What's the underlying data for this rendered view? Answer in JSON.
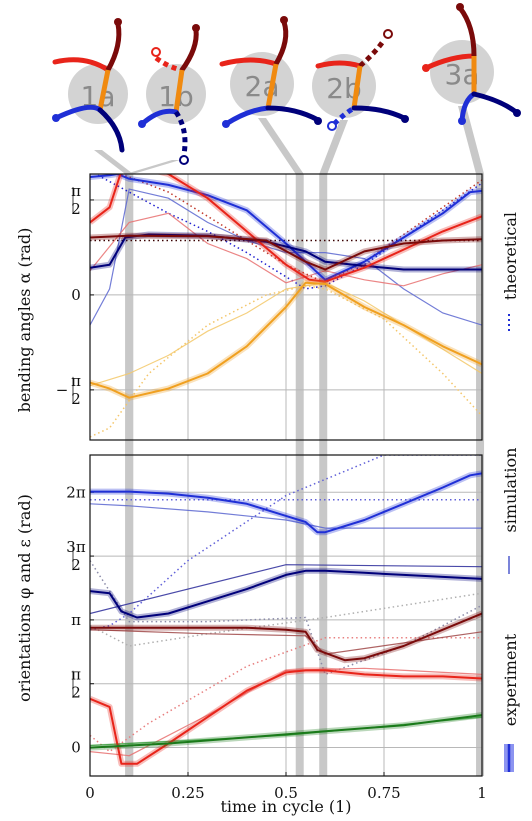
{
  "phases": [
    {
      "label": "1a",
      "t": 0.1
    },
    {
      "label": "1b",
      "t": 0.1
    },
    {
      "label": "2a",
      "t": 0.535
    },
    {
      "label": "2b",
      "t": 0.595
    },
    {
      "label": "3a",
      "t": 0.995
    }
  ],
  "chart_data": [
    {
      "type": "line",
      "ylabel": "bending angles α (rad)",
      "xlim": [
        0,
        1
      ],
      "ylim": [
        -2.4,
        2.0
      ],
      "yticks": [
        {
          "value": 1.5708,
          "label_num": "π",
          "label_den": "2",
          "sign": ""
        },
        {
          "value": 0,
          "label_num": "0",
          "label_den": "",
          "sign": ""
        },
        {
          "value": -1.5708,
          "label_num": "π",
          "label_den": "2",
          "sign": "−"
        }
      ],
      "grid": true,
      "series": [
        {
          "role": "experiment",
          "color": "#1f2fd6",
          "x": [
            0,
            0.05,
            0.07,
            0.1,
            0.2,
            0.3,
            0.4,
            0.5,
            0.55,
            0.6,
            0.7,
            0.8,
            0.9,
            0.97,
            1
          ],
          "y": [
            1.95,
            1.98,
            2.0,
            1.92,
            1.82,
            1.65,
            1.4,
            0.85,
            0.55,
            0.25,
            0.55,
            0.95,
            1.35,
            1.7,
            1.72
          ]
        },
        {
          "role": "experiment",
          "color": "#00007a",
          "x": [
            0,
            0.05,
            0.09,
            0.15,
            0.3,
            0.45,
            0.55,
            0.6,
            0.7,
            0.8,
            0.9,
            1
          ],
          "y": [
            0.45,
            0.5,
            0.95,
            1.0,
            0.98,
            0.88,
            0.72,
            0.55,
            0.48,
            0.42,
            0.42,
            0.42
          ]
        },
        {
          "role": "experiment",
          "color": "#e8241a",
          "x": [
            0,
            0.05,
            0.08,
            0.1,
            0.15,
            0.2,
            0.3,
            0.4,
            0.5,
            0.56,
            0.6,
            0.7,
            0.8,
            0.9,
            1
          ],
          "y": [
            1.2,
            1.45,
            2.05,
            2.08,
            2.08,
            2.0,
            1.6,
            1.05,
            0.5,
            0.25,
            0.22,
            0.45,
            0.75,
            1.05,
            1.3
          ]
        },
        {
          "role": "experiment",
          "color": "#7a0a0a",
          "x": [
            0,
            0.1,
            0.3,
            0.45,
            0.55,
            0.6,
            0.7,
            0.8,
            0.9,
            1
          ],
          "y": [
            0.95,
            0.98,
            0.97,
            0.9,
            0.55,
            0.42,
            0.72,
            0.85,
            0.9,
            0.92
          ]
        },
        {
          "role": "experiment",
          "color": "#f0a020",
          "x": [
            0,
            0.05,
            0.1,
            0.2,
            0.3,
            0.4,
            0.5,
            0.55,
            0.6,
            0.7,
            0.8,
            0.9,
            1
          ],
          "y": [
            -1.45,
            -1.55,
            -1.7,
            -1.55,
            -1.3,
            -0.85,
            -0.2,
            0.2,
            0.18,
            -0.2,
            -0.5,
            -0.85,
            -1.15
          ]
        },
        {
          "role": "simulation",
          "color": "#5a66d0",
          "x": [
            0,
            0.05,
            0.1,
            0.2,
            0.3,
            0.4,
            0.5,
            0.6,
            0.7,
            0.8,
            0.9,
            1
          ],
          "y": [
            -0.5,
            0.1,
            1.75,
            1.6,
            1.2,
            0.9,
            0.7,
            0.7,
            0.6,
            0.1,
            -0.3,
            -0.5
          ]
        },
        {
          "role": "simulation",
          "color": "#e87070",
          "x": [
            0,
            0.1,
            0.2,
            0.3,
            0.4,
            0.5,
            0.6,
            0.7,
            0.8,
            0.9,
            1
          ],
          "y": [
            0.4,
            1.2,
            1.35,
            0.85,
            0.6,
            0.2,
            0.4,
            0.25,
            0.15,
            0.35,
            0.5
          ]
        },
        {
          "role": "simulation",
          "color": "#f3c868",
          "x": [
            0,
            0.1,
            0.2,
            0.3,
            0.4,
            0.5,
            0.6,
            0.7,
            0.8,
            0.9,
            1
          ],
          "y": [
            -1.5,
            -1.3,
            -1.0,
            -0.6,
            -0.3,
            0.1,
            0.2,
            -0.1,
            -0.5,
            -0.9,
            -1.3
          ]
        },
        {
          "role": "theoretical",
          "color": "#2020d0",
          "x": [
            0,
            0.1,
            0.2,
            0.3,
            0.4,
            0.5,
            0.55,
            0.6,
            0.7,
            0.8,
            0.9,
            1
          ],
          "y": [
            2.05,
            1.7,
            1.35,
            1.05,
            0.7,
            0.3,
            0.1,
            0.15,
            0.5,
            0.95,
            1.4,
            1.85
          ]
        },
        {
          "role": "theoretical",
          "color": "#c0392b",
          "x": [
            0,
            0.05,
            0.1,
            0.2,
            0.3,
            0.4,
            0.5,
            0.6,
            0.7,
            0.8,
            0.9,
            1
          ],
          "y": [
            2.05,
            2.05,
            1.95,
            1.7,
            1.3,
            0.9,
            0.5,
            0.2,
            0.55,
            1.0,
            1.45,
            1.9
          ]
        },
        {
          "role": "theoretical",
          "color": "#3a0000",
          "x": [
            0,
            1
          ],
          "y": [
            0.9,
            0.9
          ]
        },
        {
          "role": "theoretical",
          "color": "#f4c66a",
          "x": [
            0,
            0.05,
            0.15,
            0.3,
            0.45,
            0.55,
            0.6,
            0.75,
            0.9,
            1
          ],
          "y": [
            -2.35,
            -2.2,
            -1.3,
            -0.5,
            0.0,
            0.15,
            0.1,
            -0.4,
            -1.3,
            -2.0
          ]
        }
      ]
    },
    {
      "type": "line",
      "ylabel": "orientations φ and ε (rad)",
      "xlim": [
        0,
        1
      ],
      "ylim": [
        -0.7,
        7.2
      ],
      "yticks": [
        {
          "value": 6.2832,
          "label_num": "2π",
          "label_den": "",
          "sign": ""
        },
        {
          "value": 4.7124,
          "label_num": "3π",
          "label_den": "2",
          "sign": ""
        },
        {
          "value": 3.1416,
          "label_num": "π",
          "label_den": "",
          "sign": ""
        },
        {
          "value": 1.5708,
          "label_num": "π",
          "label_den": "2",
          "sign": ""
        },
        {
          "value": 0,
          "label_num": "0",
          "label_den": "",
          "sign": ""
        }
      ],
      "xticks": [
        0,
        0.25,
        0.5,
        0.75,
        1
      ],
      "xtick_labels": [
        "0",
        "0.25",
        "0.5",
        "0.75",
        "1"
      ],
      "xlabel": "time in cycle (1)",
      "grid": true,
      "series": [
        {
          "role": "experiment",
          "color": "#1f2fd6",
          "x": [
            0,
            0.1,
            0.2,
            0.3,
            0.4,
            0.5,
            0.55,
            0.58,
            0.6,
            0.7,
            0.8,
            0.9,
            0.97,
            1
          ],
          "y": [
            6.3,
            6.3,
            6.25,
            6.15,
            6.0,
            5.7,
            5.55,
            5.3,
            5.3,
            5.6,
            6.0,
            6.4,
            6.7,
            6.75
          ]
        },
        {
          "role": "experiment",
          "color": "#00007a",
          "x": [
            0,
            0.05,
            0.08,
            0.12,
            0.2,
            0.3,
            0.4,
            0.5,
            0.55,
            0.6,
            0.7,
            0.8,
            0.9,
            1
          ],
          "y": [
            3.85,
            3.8,
            3.35,
            3.2,
            3.3,
            3.6,
            3.9,
            4.25,
            4.35,
            4.35,
            4.3,
            4.25,
            4.2,
            4.15
          ]
        },
        {
          "role": "experiment",
          "color": "#7a0a0a",
          "x": [
            0,
            0.2,
            0.4,
            0.5,
            0.55,
            0.58,
            0.65,
            0.7,
            0.8,
            0.9,
            1
          ],
          "y": [
            2.95,
            2.95,
            2.95,
            2.9,
            2.85,
            2.4,
            2.15,
            2.2,
            2.5,
            2.9,
            3.3
          ]
        },
        {
          "role": "experiment",
          "color": "#e8241a",
          "x": [
            0,
            0.05,
            0.08,
            0.12,
            0.2,
            0.3,
            0.4,
            0.5,
            0.55,
            0.6,
            0.7,
            0.8,
            0.9,
            1
          ],
          "y": [
            1.2,
            1.0,
            -0.4,
            -0.4,
            0.1,
            0.75,
            1.4,
            1.85,
            1.9,
            1.9,
            1.8,
            1.75,
            1.75,
            1.7
          ]
        },
        {
          "role": "experiment",
          "color": "#1a7a1a",
          "x": [
            0,
            0.2,
            0.4,
            0.6,
            0.8,
            1
          ],
          "y": [
            0.0,
            0.1,
            0.25,
            0.4,
            0.55,
            0.8
          ]
        },
        {
          "role": "simulation",
          "color": "#5a66d0",
          "x": [
            0,
            0.1,
            0.3,
            0.5,
            0.6,
            0.8,
            1
          ],
          "y": [
            6.0,
            5.95,
            5.8,
            5.6,
            5.4,
            5.4,
            5.4
          ]
        },
        {
          "role": "simulation",
          "color": "#2a2a9a",
          "x": [
            0,
            0.5,
            1
          ],
          "y": [
            3.3,
            4.5,
            4.45
          ]
        },
        {
          "role": "simulation",
          "color": "#a04848",
          "x": [
            0,
            0.3,
            0.55,
            0.6,
            1
          ],
          "y": [
            2.9,
            2.8,
            2.75,
            2.3,
            2.85
          ]
        },
        {
          "role": "simulation",
          "color": "#e87070",
          "x": [
            0,
            0.1,
            0.3,
            0.5,
            0.7,
            1
          ],
          "y": [
            -0.1,
            -0.2,
            0.8,
            1.9,
            1.95,
            1.8
          ]
        },
        {
          "role": "simulation",
          "color": "#4caf50",
          "x": [
            0,
            0.5,
            1
          ],
          "y": [
            0.05,
            0.3,
            0.75
          ]
        },
        {
          "role": "theoretical",
          "color": "#6060d8",
          "x": [
            0,
            1
          ],
          "y": [
            6.1,
            6.1
          ]
        },
        {
          "role": "theoretical",
          "color": "#6060d8",
          "x": [
            0,
            0.05,
            0.1,
            0.25,
            0.5,
            0.75,
            1
          ],
          "y": [
            2.9,
            3.0,
            3.3,
            4.6,
            6.2,
            7.2,
            7.2
          ]
        },
        {
          "role": "theoretical",
          "color": "#8a8aa8",
          "x": [
            0,
            0.1,
            0.3,
            0.55,
            0.6,
            0.8,
            1
          ],
          "y": [
            4.6,
            3.1,
            3.1,
            3.2,
            1.8,
            2.5,
            3.5
          ]
        },
        {
          "role": "theoretical",
          "color": "#e88080",
          "x": [
            0,
            0.05,
            0.15,
            0.4,
            0.6,
            1
          ],
          "y": [
            0.3,
            -0.1,
            0.6,
            2.0,
            2.7,
            2.7
          ]
        },
        {
          "role": "theoretical",
          "color": "#b0b0b0",
          "x": [
            0,
            0.1,
            0.3,
            0.6,
            1
          ],
          "y": [
            3.0,
            2.5,
            2.8,
            3.2,
            3.8
          ]
        }
      ]
    }
  ],
  "legend": {
    "theoretical": "theoretical",
    "simulation": "simulation",
    "experiment": "experiment"
  },
  "colors": {
    "grid": "#b8b8b8",
    "phase_band": "#c8c8c8",
    "phase_circle": "#d3d3d3",
    "phase_label": "#8a8a8a",
    "orange_connector": "#f08a10"
  }
}
